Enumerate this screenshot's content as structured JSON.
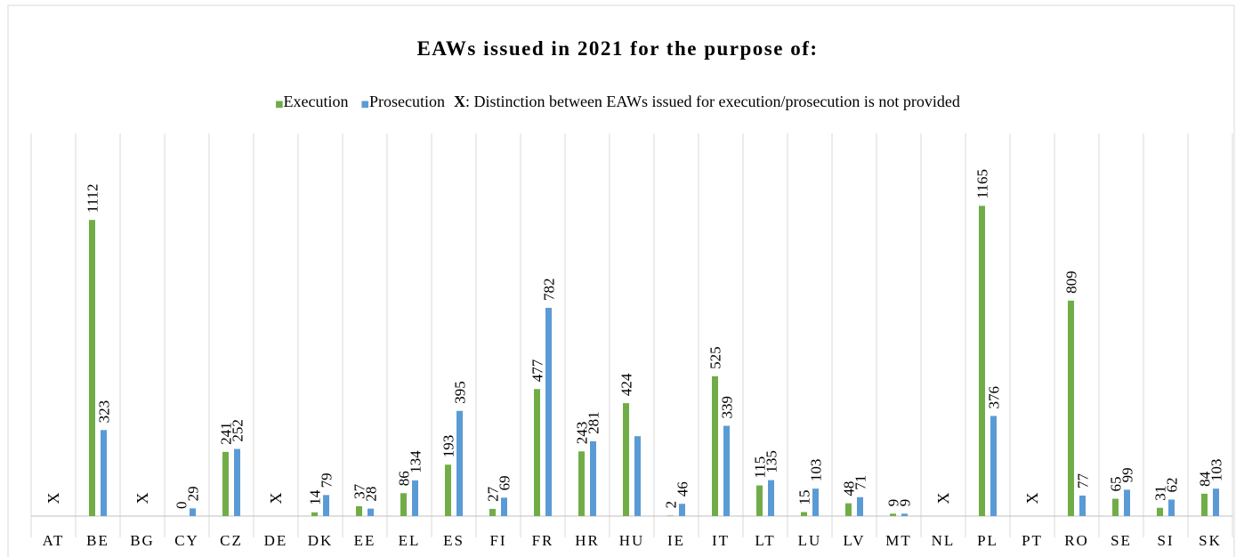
{
  "chart_data": {
    "type": "bar",
    "title": "EAWs issued in 2021 for the purpose of:",
    "categories": [
      "AT",
      "BE",
      "BG",
      "CY",
      "CZ",
      "DE",
      "DK",
      "EE",
      "EL",
      "ES",
      "FI",
      "FR",
      "HR",
      "HU",
      "IE",
      "IT",
      "LT",
      "LU",
      "LV",
      "MT",
      "NL",
      "PL",
      "PT",
      "RO",
      "SE",
      "SI",
      "SK"
    ],
    "category_markers": [
      "X",
      null,
      "X",
      null,
      null,
      "X",
      null,
      null,
      null,
      null,
      null,
      null,
      null,
      null,
      null,
      null,
      null,
      null,
      null,
      null,
      "X",
      null,
      "X",
      null,
      null,
      null,
      null
    ],
    "series": [
      {
        "name": "Execution",
        "color": "#70ad47",
        "values": [
          null,
          1112,
          null,
          0,
          241,
          null,
          14,
          37,
          86,
          193,
          27,
          477,
          243,
          424,
          2,
          525,
          115,
          15,
          48,
          9,
          null,
          1165,
          null,
          809,
          65,
          31,
          84
        ],
        "value_labels": [
          null,
          "1112",
          null,
          "0",
          "241",
          null,
          "14",
          "37",
          "86",
          "193",
          "27",
          "477",
          "243",
          "424",
          "2",
          "525",
          "115",
          "15",
          "48",
          "9",
          null,
          "1165",
          null,
          "809",
          "65",
          "31",
          "84"
        ]
      },
      {
        "name": "Prosecution",
        "color": "#5b9bd5",
        "values": [
          null,
          323,
          null,
          29,
          252,
          null,
          79,
          28,
          134,
          395,
          69,
          782,
          281,
          300,
          46,
          339,
          135,
          103,
          71,
          9,
          null,
          376,
          null,
          77,
          99,
          62,
          103
        ],
        "value_labels": [
          null,
          "323",
          null,
          "29",
          "252",
          null,
          "79",
          "28",
          "134",
          "395",
          "69",
          "782",
          "281",
          null,
          "46",
          "339",
          "135",
          "103",
          "71",
          "9",
          null,
          "376",
          null,
          "77",
          "99",
          "62",
          "103"
        ]
      }
    ],
    "legend_note": {
      "symbol": "X",
      "text": ": Distinction between EAWs issued for execution/prosecution is not provided"
    },
    "ylim": [
      0,
      1400
    ]
  }
}
